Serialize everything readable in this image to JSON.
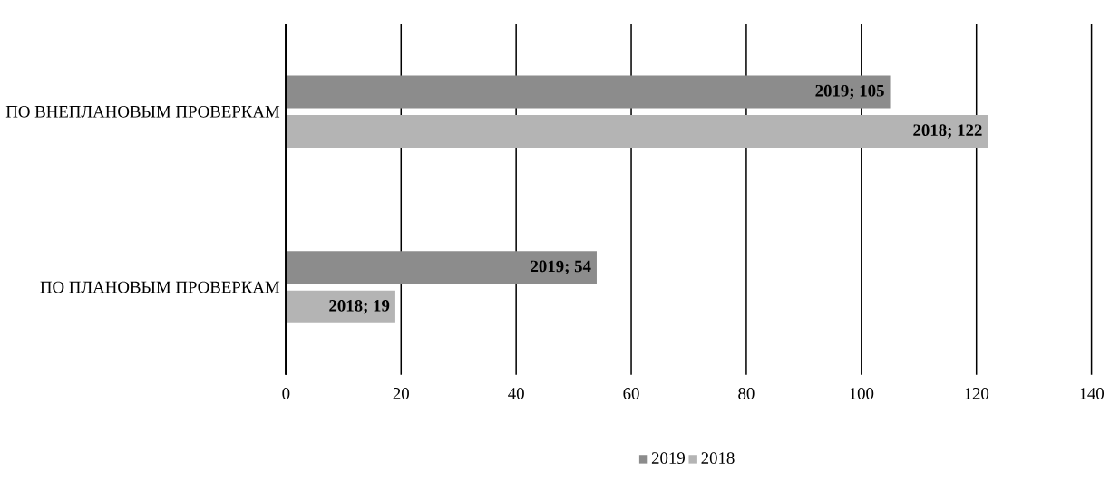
{
  "chart_data": {
    "type": "bar",
    "orientation": "horizontal",
    "categories": [
      "ПО ВНЕПЛАНОВЫМ ПРОВЕРКАМ",
      "ПО ПЛАНОВЫМ ПРОВЕРКАМ"
    ],
    "series": [
      {
        "name": "2019",
        "color": "#8c8c8c",
        "values": [
          105,
          54
        ],
        "value_labels": [
          "2019; 105",
          "2019; 54"
        ]
      },
      {
        "name": "2018",
        "color": "#b4b4b4",
        "values": [
          122,
          19
        ],
        "value_labels": [
          "2018; 122",
          "2018; 19"
        ]
      }
    ],
    "xlim": [
      0,
      140
    ],
    "xticks": [
      0,
      20,
      40,
      60,
      80,
      100,
      120,
      140
    ],
    "grid": "x",
    "legend": "bottom"
  }
}
